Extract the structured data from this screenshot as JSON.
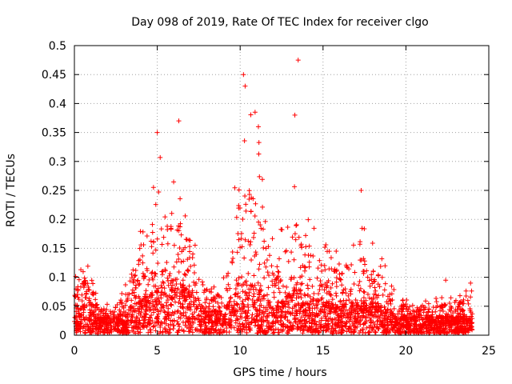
{
  "chart_data": {
    "type": "scatter",
    "title": "Day 098 of 2019, Rate Of TEC Index for receiver clgo",
    "xlabel": "GPS time / hours",
    "ylabel": "ROTI / TECUs",
    "xlim": [
      0,
      25
    ],
    "ylim": [
      0,
      0.5
    ],
    "x_ticks": [
      0,
      5,
      10,
      15,
      20,
      25
    ],
    "x_tick_labels": [
      "0",
      "5",
      "10",
      "15",
      "20",
      "25"
    ],
    "y_ticks": [
      0,
      0.05,
      0.1,
      0.15,
      0.2,
      0.25,
      0.3,
      0.35,
      0.4,
      0.45,
      0.5
    ],
    "y_tick_labels": [
      "0",
      "0.05",
      "0.1",
      "0.15",
      "0.2",
      "0.25",
      "0.3",
      "0.35",
      "0.4",
      "0.45",
      "0.5"
    ],
    "grid": true,
    "marker": "+",
    "marker_color": "#ff0000",
    "series": [
      {
        "name": "ROTI",
        "x_range": [
          0,
          24
        ],
        "envelope": [
          {
            "x": 0.0,
            "base": 0.05,
            "peak": 0.1
          },
          {
            "x": 0.8,
            "base": 0.05,
            "peak": 0.14
          },
          {
            "x": 1.5,
            "base": 0.03,
            "peak": 0.05
          },
          {
            "x": 2.5,
            "base": 0.03,
            "peak": 0.06
          },
          {
            "x": 3.5,
            "base": 0.05,
            "peak": 0.12
          },
          {
            "x": 4.0,
            "base": 0.06,
            "peak": 0.21
          },
          {
            "x": 5.0,
            "base": 0.08,
            "peak": 0.31
          },
          {
            "x": 6.0,
            "base": 0.1,
            "peak": 0.3
          },
          {
            "x": 7.0,
            "base": 0.07,
            "peak": 0.22
          },
          {
            "x": 8.0,
            "base": 0.04,
            "peak": 0.08
          },
          {
            "x": 9.0,
            "base": 0.04,
            "peak": 0.1
          },
          {
            "x": 10.0,
            "base": 0.1,
            "peak": 0.42
          },
          {
            "x": 11.0,
            "base": 0.08,
            "peak": 0.36
          },
          {
            "x": 12.0,
            "base": 0.05,
            "peak": 0.17
          },
          {
            "x": 13.0,
            "base": 0.07,
            "peak": 0.25
          },
          {
            "x": 13.5,
            "base": 0.08,
            "peak": 0.3
          },
          {
            "x": 14.5,
            "base": 0.06,
            "peak": 0.19
          },
          {
            "x": 16.0,
            "base": 0.05,
            "peak": 0.16
          },
          {
            "x": 17.5,
            "base": 0.06,
            "peak": 0.19
          },
          {
            "x": 18.5,
            "base": 0.05,
            "peak": 0.14
          },
          {
            "x": 19.5,
            "base": 0.03,
            "peak": 0.07
          },
          {
            "x": 21.0,
            "base": 0.03,
            "peak": 0.06
          },
          {
            "x": 23.0,
            "base": 0.03,
            "peak": 0.07
          },
          {
            "x": 24.0,
            "base": 0.03,
            "peak": 0.08
          }
        ],
        "notable_points": [
          {
            "x": 10.2,
            "y": 0.45
          },
          {
            "x": 13.5,
            "y": 0.475
          },
          {
            "x": 6.3,
            "y": 0.37
          },
          {
            "x": 10.3,
            "y": 0.43
          },
          {
            "x": 5.0,
            "y": 0.35
          },
          {
            "x": 13.3,
            "y": 0.38
          },
          {
            "x": 10.9,
            "y": 0.385
          },
          {
            "x": 11.1,
            "y": 0.36
          },
          {
            "x": 17.3,
            "y": 0.25
          },
          {
            "x": 22.4,
            "y": 0.095
          },
          {
            "x": 23.9,
            "y": 0.09
          }
        ]
      }
    ]
  }
}
